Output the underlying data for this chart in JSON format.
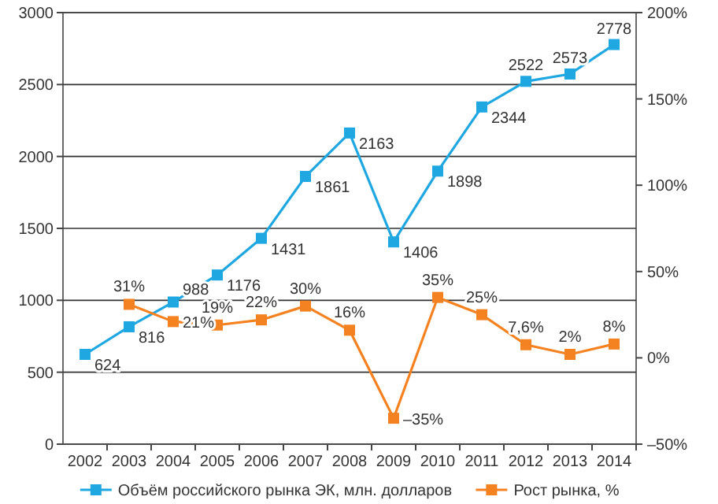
{
  "chart_data": {
    "type": "line",
    "categories": [
      "2002",
      "2003",
      "2004",
      "2005",
      "2006",
      "2007",
      "2008",
      "2009",
      "2010",
      "2011",
      "2012",
      "2013",
      "2014"
    ],
    "series": [
      {
        "name": "Объём российского рынка ЭК, млн. долларов",
        "color": "#1ea7e1",
        "values": [
          624,
          816,
          988,
          1176,
          1431,
          1861,
          2163,
          1406,
          1898,
          2344,
          2522,
          2573,
          2778
        ],
        "value_labels": [
          "624",
          "816",
          "988",
          "1176",
          "1431",
          "1861",
          "2163",
          "1406",
          "1898",
          "2344",
          "2522",
          "2573",
          "2778"
        ]
      },
      {
        "name": "Рост рынка, %",
        "color": "#f58220",
        "axis": "y2",
        "values": [
          null,
          31,
          21,
          19,
          22,
          30,
          16,
          -35,
          35,
          25,
          7.6,
          2,
          8
        ],
        "value_labels": [
          null,
          "31%",
          "21%",
          "19%",
          "22%",
          "30%",
          "16%",
          "–35%",
          "35%",
          "25%",
          "7,6%",
          "2%",
          "8%"
        ]
      }
    ],
    "ylim": [
      0,
      3000
    ],
    "yticks": [
      0,
      500,
      1000,
      1500,
      2000,
      2500,
      3000
    ],
    "y2lim": [
      -50,
      200
    ],
    "y2ticks": [
      {
        "value": -50,
        "label": "–50%"
      },
      {
        "value": 0,
        "label": "0%"
      },
      {
        "value": 50,
        "label": "50%"
      },
      {
        "value": 100,
        "label": "100%"
      },
      {
        "value": 150,
        "label": "150%"
      },
      {
        "value": 200,
        "label": "200%"
      }
    ],
    "grid": "y",
    "legend": "bottom",
    "marker": "square",
    "line_style": "solid"
  }
}
